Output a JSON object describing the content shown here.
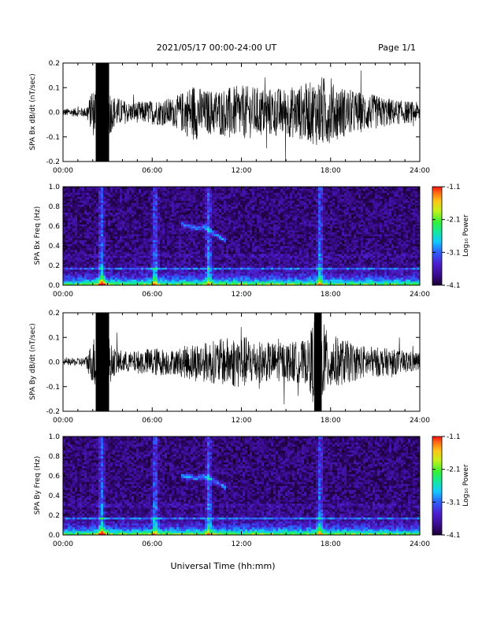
{
  "header": {
    "title": "2021/05/17  00:00-24:00 UT",
    "page": "Page 1/1"
  },
  "footer": {
    "xlabel": "Universal Time (hh:mm)"
  },
  "colors": {
    "background": "#ffffff",
    "trace": "#000000",
    "grid_line": "#8fa8ff",
    "colormap": [
      "#1a0033",
      "#3a0b8c",
      "#4c1fd0",
      "#2b62ff",
      "#13c8ff",
      "#12e8a0",
      "#34f036",
      "#c8f01a",
      "#ffc21a",
      "#ff6a14",
      "#ff1010"
    ]
  },
  "chart_data": [
    {
      "type": "line",
      "ylabel": "SPA Bx dB/dt (nT/sec)",
      "xlim": [
        0,
        24
      ],
      "ylim": [
        -0.2,
        0.2
      ],
      "x_ticks": [
        "00:00",
        "06:00",
        "12:00",
        "18:00",
        "24:00"
      ],
      "y_ticks": [
        "-0.2",
        "-0.1",
        "0.0",
        "0.1",
        "0.2"
      ],
      "y_tick_values": [
        -0.2,
        -0.1,
        0.0,
        0.1,
        0.2
      ],
      "noise_envelope": {
        "x": [
          0,
          1.5,
          2.0,
          2.6,
          3.3,
          4.5,
          6.0,
          7.5,
          8.8,
          9.5,
          11.0,
          12.0,
          13.5,
          15.0,
          16.5,
          17.5,
          18.0,
          19.5,
          21.0,
          22.5,
          24.0
        ],
        "y": [
          0.015,
          0.02,
          0.09,
          0.22,
          0.07,
          0.04,
          0.05,
          0.06,
          0.12,
          0.09,
          0.1,
          0.11,
          0.1,
          0.1,
          0.12,
          0.15,
          0.12,
          0.09,
          0.07,
          0.05,
          0.04
        ]
      },
      "saturated_bands": [
        [
          2.2,
          3.1
        ]
      ]
    },
    {
      "type": "heatmap",
      "ylabel": "SPA Bx Freq (Hz)",
      "xlim": [
        0,
        24
      ],
      "ylim": [
        0,
        1.0
      ],
      "x_ticks": [
        "00:00",
        "06:00",
        "12:00",
        "18:00",
        "24:00"
      ],
      "y_ticks": [
        "0.0",
        "0.2",
        "0.4",
        "0.6",
        "0.8",
        "1.0"
      ],
      "y_tick_values": [
        0.0,
        0.2,
        0.4,
        0.6,
        0.8,
        1.0
      ],
      "colorbar": {
        "label": "Log₁₀ Power",
        "ticks": [
          "-1.1",
          "-2.1",
          "-3.1",
          "-4.1"
        ],
        "range": [
          -4.1,
          -1.1
        ]
      },
      "horizontal_lines_hz": [
        0.3,
        0.17
      ],
      "vertical_bursts_hr": [
        2.6,
        6.2,
        9.8,
        17.3
      ],
      "feature_ridge": {
        "x": [
          8.0,
          9.0,
          9.5,
          10.2,
          11.0
        ],
        "y": [
          0.62,
          0.58,
          0.6,
          0.52,
          0.45
        ]
      }
    },
    {
      "type": "line",
      "ylabel": "SPA By dB/dt (nT/sec)",
      "xlim": [
        0,
        24
      ],
      "ylim": [
        -0.2,
        0.2
      ],
      "x_ticks": [
        "00:00",
        "06:00",
        "12:00",
        "18:00",
        "24:00"
      ],
      "y_ticks": [
        "-0.2",
        "-0.1",
        "0.0",
        "0.1",
        "0.2"
      ],
      "y_tick_values": [
        -0.2,
        -0.1,
        0.0,
        0.1,
        0.2
      ],
      "noise_envelope": {
        "x": [
          0,
          1.5,
          2.0,
          2.6,
          3.3,
          4.5,
          6.0,
          7.5,
          8.8,
          9.5,
          11.0,
          12.0,
          13.5,
          15.0,
          16.5,
          17.0,
          17.5,
          18.5,
          20.0,
          22.5,
          24.0
        ],
        "y": [
          0.012,
          0.02,
          0.09,
          0.22,
          0.06,
          0.04,
          0.06,
          0.05,
          0.08,
          0.08,
          0.1,
          0.11,
          0.08,
          0.08,
          0.09,
          0.22,
          0.14,
          0.1,
          0.07,
          0.05,
          0.04
        ]
      },
      "saturated_bands": [
        [
          2.2,
          3.1
        ],
        [
          16.9,
          17.4
        ]
      ]
    },
    {
      "type": "heatmap",
      "ylabel": "SPA By Freq (Hz)",
      "xlim": [
        0,
        24
      ],
      "ylim": [
        0,
        1.0
      ],
      "x_ticks": [
        "00:00",
        "06:00",
        "12:00",
        "18:00",
        "24:00"
      ],
      "y_ticks": [
        "0.0",
        "0.2",
        "0.4",
        "0.6",
        "0.8",
        "1.0"
      ],
      "y_tick_values": [
        0.0,
        0.2,
        0.4,
        0.6,
        0.8,
        1.0
      ],
      "colorbar": {
        "label": "Log₁₀ Power",
        "ticks": [
          "-1.1",
          "-2.1",
          "-3.1",
          "-4.1"
        ],
        "range": [
          -4.1,
          -1.1
        ]
      },
      "horizontal_lines_hz": [
        0.3,
        0.17
      ],
      "vertical_bursts_hr": [
        2.6,
        6.2,
        9.8,
        17.3
      ],
      "feature_ridge": {
        "x": [
          8.0,
          9.0,
          9.5,
          10.2,
          11.0
        ],
        "y": [
          0.6,
          0.58,
          0.6,
          0.55,
          0.48
        ]
      }
    }
  ]
}
